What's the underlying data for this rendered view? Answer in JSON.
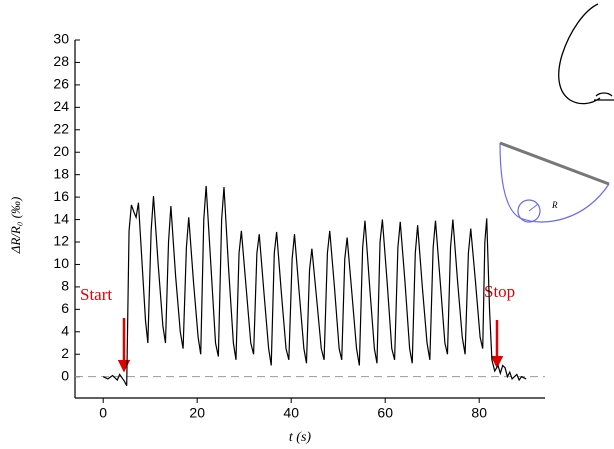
{
  "chart_data": {
    "type": "line",
    "y_label": "ΔR/R₀ (‰)",
    "x_label": "t (s)",
    "annotations": [
      "Start",
      "Stop"
    ],
    "inset_label": "R",
    "xlim": [
      -6,
      94
    ],
    "ylim": [
      -1.9,
      30
    ],
    "xticks": [
      0,
      20,
      40,
      60,
      80
    ],
    "yticks": [
      0,
      2,
      4,
      6,
      8,
      10,
      12,
      14,
      16,
      18,
      20,
      22,
      24,
      26,
      28,
      30
    ],
    "reference_line": 0,
    "series": [
      {
        "color": "#000000",
        "x": [
          0,
          1,
          2,
          3,
          3.5,
          4,
          4.5,
          5,
          5.5,
          6,
          6.5,
          7,
          7.5,
          8,
          9,
          9.5,
          10.2,
          10.7,
          11.7,
          12.7,
          13.25,
          13.9,
          14.4,
          15.4,
          16.4,
          17,
          17.7,
          18.2,
          19.2,
          20.2,
          20.75,
          21.4,
          21.9,
          22.9,
          23.9,
          24.5,
          25.2,
          25.7,
          26.7,
          27.7,
          28.25,
          28.9,
          29.4,
          30.4,
          31.4,
          32,
          32.7,
          33.2,
          34.2,
          35.2,
          35.75,
          36.4,
          36.9,
          37.9,
          38.9,
          39.5,
          40.2,
          40.7,
          41.7,
          42.7,
          43.25,
          43.9,
          44.4,
          45.4,
          46.4,
          47,
          47.7,
          48.2,
          49.2,
          50.2,
          50.75,
          51.4,
          51.9,
          52.9,
          53.9,
          54.5,
          55.2,
          55.7,
          56.7,
          57.7,
          58.25,
          58.9,
          59.4,
          60.4,
          61.4,
          62,
          62.7,
          63.2,
          64.2,
          65.2,
          65.75,
          66.4,
          66.9,
          67.9,
          68.9,
          69.5,
          70.2,
          70.7,
          71.7,
          72.7,
          73.25,
          73.9,
          74.4,
          75.4,
          76.4,
          77,
          77.7,
          78.2,
          79.2,
          80.2,
          80.75,
          81.2,
          81.6,
          82.2,
          82.7,
          83.3,
          84,
          84.5,
          85,
          85.5,
          86,
          86.5,
          87,
          88,
          88.5,
          89,
          90
        ],
        "values": [
          0,
          -0.2,
          0.1,
          -0.3,
          0.2,
          -0.1,
          -0.4,
          -0.8,
          13,
          15.3,
          14.7,
          14.2,
          15.5,
          12,
          5,
          3,
          13,
          16.1,
          10,
          4.5,
          3,
          12,
          15.2,
          9,
          4,
          2.5,
          11.5,
          14.2,
          8.5,
          3.5,
          2,
          14,
          17,
          10,
          3,
          1.8,
          14,
          16.9,
          9.5,
          3,
          1.5,
          11,
          13,
          8,
          3,
          2,
          11,
          12.7,
          7.5,
          2.5,
          1,
          11,
          12.9,
          7.5,
          2.5,
          1.5,
          10.5,
          12.7,
          7.5,
          2.5,
          1.2,
          9.5,
          11.4,
          7,
          2.5,
          1.5,
          11,
          13,
          8,
          2.5,
          1.5,
          10.5,
          12.4,
          7.5,
          2.5,
          1,
          11.5,
          13.9,
          8,
          2.5,
          1.2,
          12,
          14,
          8.5,
          2.5,
          1.5,
          11.5,
          13.8,
          8.5,
          2.5,
          1.2,
          11,
          13.5,
          8,
          3,
          1.5,
          11.5,
          13.9,
          8.5,
          3,
          2,
          11.5,
          14,
          8.5,
          3.5,
          2,
          11,
          13.2,
          8.5,
          3.5,
          2.5,
          12,
          14.1,
          6,
          1.5,
          0.5,
          1,
          0.3,
          1,
          0.8,
          0,
          0.4,
          -0.2,
          0.2,
          -0.3,
          0,
          -0.2
        ]
      }
    ]
  }
}
